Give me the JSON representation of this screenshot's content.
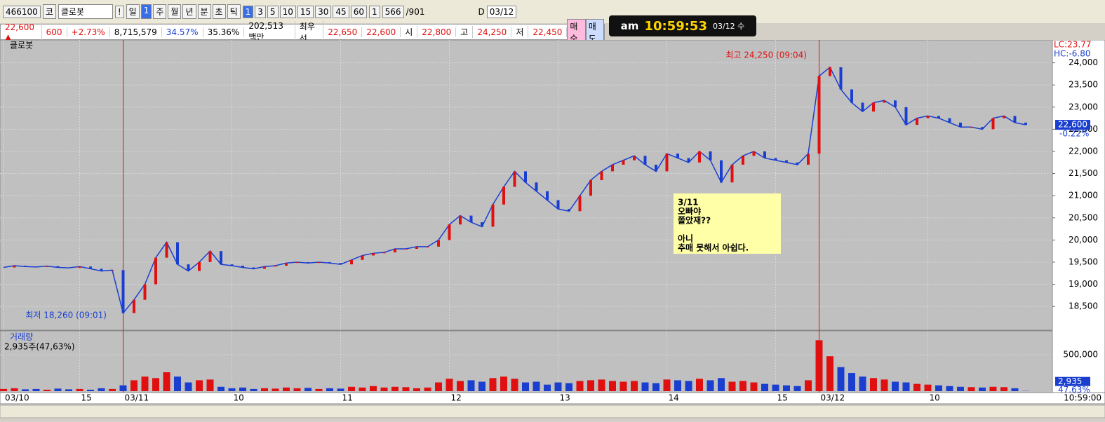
{
  "toolbar": {
    "code": "466100",
    "market": "코",
    "name": "클로봇",
    "alert": "!",
    "periods": [
      "일",
      "1",
      "주",
      "월",
      "년",
      "분",
      "초",
      "틱"
    ],
    "intervals": [
      "1",
      "3",
      "5",
      "10",
      "15",
      "30",
      "45",
      "60"
    ],
    "count": "1",
    "range": "566",
    "total": "/901",
    "d": "D",
    "date": "03/12"
  },
  "quote": {
    "price": "22,600 ▲",
    "change": "600",
    "rate": "+2.73%",
    "volume": "8,715,579",
    "ratio1": "34.57%",
    "ratio2": "35.36%",
    "amount": "202,513백만",
    "best": "최우선",
    "ask": "22,650",
    "bid": "22,600",
    "open_label": "시",
    "open": "22,800",
    "high_label": "고",
    "high": "24,250",
    "low_label": "저",
    "low": "22,450",
    "buy": "매수",
    "sell": "매도"
  },
  "clock": {
    "ampm": "am",
    "time": "10:59:53",
    "date": "03/12 수"
  },
  "chart_data": [
    {
      "type": "line",
      "title": "클로봇",
      "color": "#1a3fd0",
      "up_color": "#e01010",
      "down_color": "#1a3fd0",
      "categories": [
        "03/10",
        null,
        null,
        null,
        null,
        null,
        null,
        "15",
        null,
        null,
        null,
        "03/11",
        null,
        null,
        null,
        null,
        null,
        null,
        null,
        null,
        null,
        "10",
        null,
        null,
        null,
        null,
        null,
        null,
        null,
        null,
        null,
        "11",
        null,
        null,
        null,
        null,
        null,
        null,
        null,
        null,
        null,
        "12",
        null,
        null,
        null,
        null,
        null,
        null,
        null,
        null,
        null,
        "13",
        null,
        null,
        null,
        null,
        null,
        null,
        null,
        null,
        null,
        "14",
        null,
        null,
        null,
        null,
        null,
        null,
        null,
        null,
        null,
        "15",
        null,
        null,
        null,
        "03/12",
        null,
        null,
        null,
        null,
        null,
        null,
        null,
        null,
        null,
        "10",
        null,
        null,
        null,
        null,
        null,
        null,
        null,
        null,
        null
      ],
      "values": [
        19380,
        19420,
        19400,
        19390,
        19410,
        19380,
        19370,
        19400,
        19350,
        19300,
        19320,
        18350,
        18650,
        19000,
        19600,
        19950,
        19450,
        19300,
        19500,
        19750,
        19450,
        19420,
        19380,
        19350,
        19400,
        19420,
        19480,
        19500,
        19480,
        19500,
        19480,
        19450,
        19550,
        19650,
        19700,
        19720,
        19800,
        19800,
        19850,
        19850,
        20000,
        20350,
        20550,
        20400,
        20300,
        20800,
        21200,
        21550,
        21300,
        21100,
        20900,
        20700,
        20650,
        21000,
        21350,
        21550,
        21700,
        21800,
        21900,
        21700,
        21550,
        21950,
        21850,
        21750,
        22000,
        21800,
        21300,
        21700,
        21900,
        22000,
        21850,
        21800,
        21750,
        21700,
        21950,
        23700,
        23900,
        23400,
        23100,
        22900,
        23100,
        23150,
        23000,
        22600,
        22750,
        22800,
        22750,
        22650,
        22550,
        22550,
        22500,
        22750,
        22800,
        22650,
        22600
      ],
      "ylim": [
        17980,
        24500
      ],
      "yticks": [
        {
          "value": 18500,
          "label": "18,500"
        },
        {
          "value": 19000,
          "label": "19,000"
        },
        {
          "value": 19500,
          "label": "19,500"
        },
        {
          "value": 20000,
          "label": "20,000"
        },
        {
          "value": 20500,
          "label": "20,500"
        },
        {
          "value": 21000,
          "label": "21,000"
        },
        {
          "value": 21500,
          "label": "21,500"
        },
        {
          "value": 22000,
          "label": "22,000"
        },
        {
          "value": 22500,
          "label": "22,500"
        },
        {
          "value": 23000,
          "label": "23,000"
        },
        {
          "value": 23500,
          "label": "23,500"
        },
        {
          "value": 24000,
          "label": "24,000"
        }
      ],
      "x_end_label": "10:59:00",
      "lc": "LC:23.77",
      "hc": "HC:-6.80",
      "last_label": "22,600",
      "last_rate": "-0.22%",
      "annotations": {
        "high": "최고 24,250 (09:04)",
        "low": "최저 18,260 (09:01)",
        "note": [
          "3/11",
          "오빠야",
          "쫄았재??",
          "아니",
          "추매 못해서 아쉽다."
        ]
      },
      "grid": true
    },
    {
      "type": "bar",
      "title": "거래량",
      "subtitle": "2,935주(47,63%)",
      "values": [
        30000,
        40000,
        25000,
        30000,
        20000,
        35000,
        25000,
        30000,
        20000,
        40000,
        30000,
        80000,
        150000,
        200000,
        180000,
        260000,
        200000,
        120000,
        150000,
        160000,
        60000,
        40000,
        50000,
        30000,
        40000,
        35000,
        50000,
        40000,
        45000,
        30000,
        40000,
        35000,
        60000,
        50000,
        70000,
        50000,
        60000,
        55000,
        40000,
        50000,
        120000,
        170000,
        140000,
        150000,
        130000,
        180000,
        200000,
        170000,
        120000,
        130000,
        90000,
        120000,
        110000,
        140000,
        150000,
        160000,
        140000,
        130000,
        140000,
        120000,
        110000,
        160000,
        150000,
        140000,
        170000,
        150000,
        180000,
        130000,
        140000,
        120000,
        100000,
        90000,
        80000,
        70000,
        150000,
        700000,
        480000,
        330000,
        250000,
        200000,
        180000,
        160000,
        130000,
        120000,
        100000,
        90000,
        80000,
        70000,
        60000,
        55000,
        50000,
        60000,
        55000,
        40000,
        2935
      ],
      "ylim": [
        0,
        800000
      ],
      "yticks": [
        {
          "value": 500000,
          "label": "500,000"
        }
      ],
      "last_label": "2,935",
      "last_rate": "47.63%"
    }
  ]
}
